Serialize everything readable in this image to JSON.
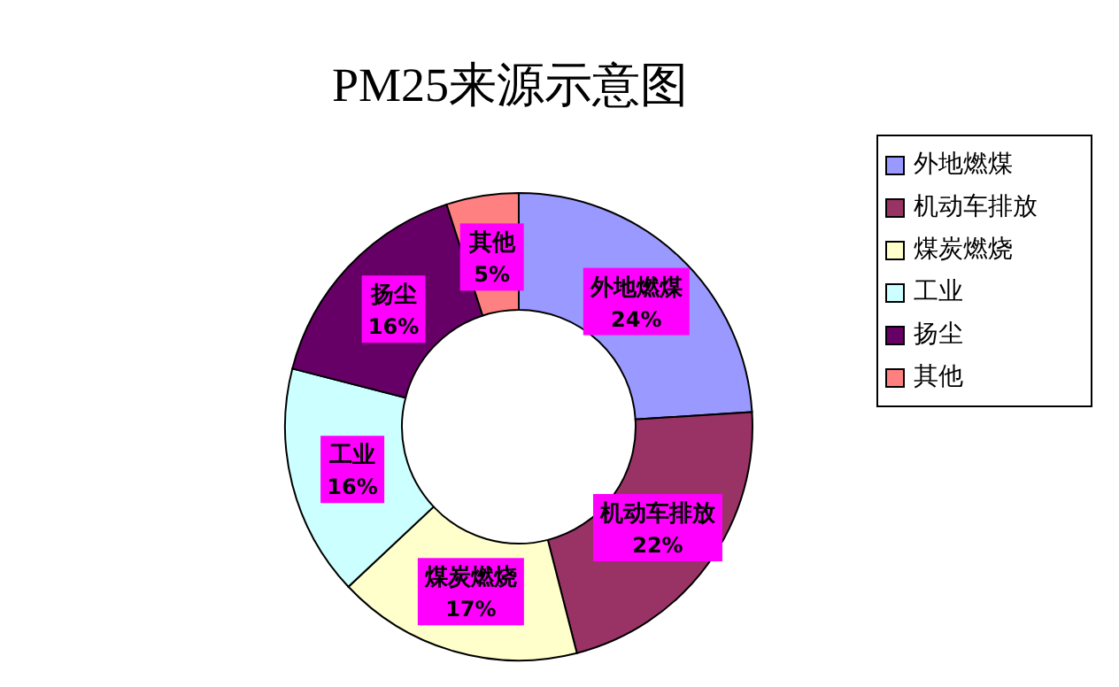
{
  "chart_data": {
    "type": "donut",
    "title": "PM25来源示意图",
    "categories": [
      "外地燃煤",
      "机动车排放",
      "煤炭燃烧",
      "工业",
      "扬尘",
      "其他"
    ],
    "values": [
      24,
      22,
      17,
      16,
      16,
      5
    ],
    "value_labels": [
      "24%",
      "22%",
      "17%",
      "16%",
      "16%",
      "5%"
    ],
    "colors": [
      "#9999ff",
      "#993366",
      "#ffffcc",
      "#ccffff",
      "#660066",
      "#ff8080"
    ],
    "legend": "right"
  }
}
